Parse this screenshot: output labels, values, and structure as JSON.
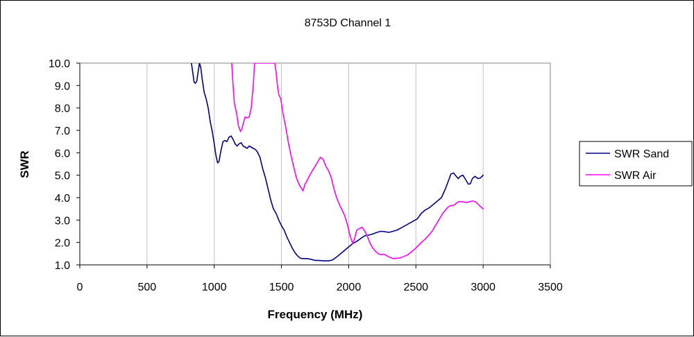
{
  "chart_data": {
    "type": "line",
    "title": "8753D Channel 1",
    "xlabel": "Frequency (MHz)",
    "ylabel": "SWR",
    "xlim": [
      0,
      3500
    ],
    "ylim": [
      1.0,
      10.0
    ],
    "x_ticks": [
      "0",
      "500",
      "1000",
      "1500",
      "2000",
      "2500",
      "3000",
      "3500"
    ],
    "y_ticks": [
      "1.0",
      "2.0",
      "3.0",
      "4.0",
      "5.0",
      "6.0",
      "7.0",
      "8.0",
      "9.0",
      "10.0"
    ],
    "x_tick_values": [
      0,
      500,
      1000,
      1500,
      2000,
      2500,
      3000,
      3500
    ],
    "y_tick_values": [
      1,
      2,
      3,
      4,
      5,
      6,
      7,
      8,
      9,
      10
    ],
    "grid": "vertical",
    "legend_position": "right",
    "series": [
      {
        "name": "SWR Sand",
        "color": "#000080",
        "points": [
          [
            830,
            10.0
          ],
          [
            840,
            9.6
          ],
          [
            850,
            9.15
          ],
          [
            860,
            9.1
          ],
          [
            870,
            9.2
          ],
          [
            880,
            9.6
          ],
          [
            890,
            10.0
          ],
          [
            900,
            9.8
          ],
          [
            910,
            9.3
          ],
          [
            925,
            8.7
          ],
          [
            940,
            8.4
          ],
          [
            955,
            8.0
          ],
          [
            970,
            7.4
          ],
          [
            985,
            6.95
          ],
          [
            1000,
            6.4
          ],
          [
            1012,
            5.9
          ],
          [
            1025,
            5.55
          ],
          [
            1035,
            5.6
          ],
          [
            1050,
            6.1
          ],
          [
            1065,
            6.5
          ],
          [
            1080,
            6.55
          ],
          [
            1095,
            6.5
          ],
          [
            1110,
            6.7
          ],
          [
            1125,
            6.75
          ],
          [
            1140,
            6.6
          ],
          [
            1155,
            6.4
          ],
          [
            1170,
            6.3
          ],
          [
            1185,
            6.4
          ],
          [
            1200,
            6.45
          ],
          [
            1215,
            6.3
          ],
          [
            1230,
            6.25
          ],
          [
            1245,
            6.2
          ],
          [
            1260,
            6.3
          ],
          [
            1275,
            6.25
          ],
          [
            1290,
            6.2
          ],
          [
            1305,
            6.15
          ],
          [
            1320,
            6.05
          ],
          [
            1340,
            5.8
          ],
          [
            1360,
            5.3
          ],
          [
            1380,
            4.9
          ],
          [
            1400,
            4.4
          ],
          [
            1420,
            3.9
          ],
          [
            1440,
            3.5
          ],
          [
            1460,
            3.3
          ],
          [
            1480,
            3.0
          ],
          [
            1500,
            2.75
          ],
          [
            1520,
            2.55
          ],
          [
            1540,
            2.25
          ],
          [
            1560,
            2.0
          ],
          [
            1580,
            1.75
          ],
          [
            1600,
            1.55
          ],
          [
            1620,
            1.4
          ],
          [
            1640,
            1.3
          ],
          [
            1660,
            1.28
          ],
          [
            1690,
            1.28
          ],
          [
            1720,
            1.25
          ],
          [
            1750,
            1.2
          ],
          [
            1780,
            1.2
          ],
          [
            1810,
            1.18
          ],
          [
            1850,
            1.18
          ],
          [
            1880,
            1.22
          ],
          [
            1910,
            1.35
          ],
          [
            1940,
            1.5
          ],
          [
            1970,
            1.65
          ],
          [
            2000,
            1.8
          ],
          [
            2030,
            1.95
          ],
          [
            2060,
            2.05
          ],
          [
            2090,
            2.18
          ],
          [
            2120,
            2.3
          ],
          [
            2150,
            2.33
          ],
          [
            2180,
            2.38
          ],
          [
            2210,
            2.45
          ],
          [
            2240,
            2.5
          ],
          [
            2270,
            2.48
          ],
          [
            2300,
            2.45
          ],
          [
            2330,
            2.5
          ],
          [
            2360,
            2.55
          ],
          [
            2390,
            2.65
          ],
          [
            2420,
            2.75
          ],
          [
            2450,
            2.85
          ],
          [
            2480,
            2.95
          ],
          [
            2510,
            3.05
          ],
          [
            2540,
            3.3
          ],
          [
            2570,
            3.45
          ],
          [
            2600,
            3.55
          ],
          [
            2630,
            3.7
          ],
          [
            2660,
            3.85
          ],
          [
            2690,
            4.0
          ],
          [
            2720,
            4.4
          ],
          [
            2745,
            4.8
          ],
          [
            2760,
            5.05
          ],
          [
            2780,
            5.1
          ],
          [
            2800,
            4.95
          ],
          [
            2815,
            4.85
          ],
          [
            2830,
            4.95
          ],
          [
            2850,
            5.0
          ],
          [
            2870,
            4.8
          ],
          [
            2890,
            4.6
          ],
          [
            2905,
            4.62
          ],
          [
            2920,
            4.85
          ],
          [
            2940,
            4.95
          ],
          [
            2960,
            4.85
          ],
          [
            2980,
            4.88
          ],
          [
            3000,
            5.0
          ]
        ]
      },
      {
        "name": "SWR Air",
        "color": "#FF00FF",
        "points": [
          [
            1130,
            10.0
          ],
          [
            1140,
            9.0
          ],
          [
            1150,
            8.2
          ],
          [
            1165,
            7.8
          ],
          [
            1180,
            7.2
          ],
          [
            1195,
            6.95
          ],
          [
            1205,
            7.05
          ],
          [
            1215,
            7.3
          ],
          [
            1230,
            7.6
          ],
          [
            1245,
            7.55
          ],
          [
            1260,
            7.6
          ],
          [
            1275,
            8.0
          ],
          [
            1290,
            9.0
          ],
          [
            1300,
            10.0
          ],
          [
            1450,
            10.0
          ],
          [
            1460,
            9.6
          ],
          [
            1470,
            9.0
          ],
          [
            1480,
            8.6
          ],
          [
            1495,
            8.4
          ],
          [
            1510,
            7.8
          ],
          [
            1530,
            7.2
          ],
          [
            1550,
            6.5
          ],
          [
            1570,
            5.9
          ],
          [
            1590,
            5.4
          ],
          [
            1610,
            4.9
          ],
          [
            1630,
            4.6
          ],
          [
            1650,
            4.4
          ],
          [
            1660,
            4.3
          ],
          [
            1675,
            4.6
          ],
          [
            1690,
            4.75
          ],
          [
            1710,
            5.0
          ],
          [
            1730,
            5.2
          ],
          [
            1750,
            5.4
          ],
          [
            1770,
            5.6
          ],
          [
            1790,
            5.8
          ],
          [
            1810,
            5.7
          ],
          [
            1830,
            5.4
          ],
          [
            1850,
            5.2
          ],
          [
            1870,
            4.9
          ],
          [
            1890,
            4.4
          ],
          [
            1910,
            4.0
          ],
          [
            1930,
            3.7
          ],
          [
            1950,
            3.45
          ],
          [
            1970,
            3.2
          ],
          [
            1990,
            2.8
          ],
          [
            2010,
            2.3
          ],
          [
            2030,
            1.95
          ],
          [
            2045,
            2.2
          ],
          [
            2060,
            2.55
          ],
          [
            2080,
            2.62
          ],
          [
            2100,
            2.68
          ],
          [
            2120,
            2.5
          ],
          [
            2140,
            2.25
          ],
          [
            2160,
            1.95
          ],
          [
            2180,
            1.75
          ],
          [
            2200,
            1.6
          ],
          [
            2220,
            1.5
          ],
          [
            2240,
            1.45
          ],
          [
            2260,
            1.48
          ],
          [
            2280,
            1.42
          ],
          [
            2300,
            1.35
          ],
          [
            2320,
            1.3
          ],
          [
            2340,
            1.28
          ],
          [
            2360,
            1.3
          ],
          [
            2380,
            1.3
          ],
          [
            2400,
            1.35
          ],
          [
            2420,
            1.4
          ],
          [
            2440,
            1.45
          ],
          [
            2460,
            1.55
          ],
          [
            2480,
            1.65
          ],
          [
            2500,
            1.75
          ],
          [
            2520,
            1.88
          ],
          [
            2540,
            2.0
          ],
          [
            2560,
            2.1
          ],
          [
            2580,
            2.22
          ],
          [
            2600,
            2.35
          ],
          [
            2620,
            2.5
          ],
          [
            2640,
            2.7
          ],
          [
            2660,
            2.9
          ],
          [
            2680,
            3.1
          ],
          [
            2700,
            3.3
          ],
          [
            2720,
            3.45
          ],
          [
            2740,
            3.58
          ],
          [
            2760,
            3.65
          ],
          [
            2780,
            3.65
          ],
          [
            2800,
            3.75
          ],
          [
            2820,
            3.82
          ],
          [
            2840,
            3.82
          ],
          [
            2860,
            3.8
          ],
          [
            2880,
            3.78
          ],
          [
            2900,
            3.82
          ],
          [
            2920,
            3.85
          ],
          [
            2940,
            3.82
          ],
          [
            2960,
            3.72
          ],
          [
            2980,
            3.6
          ],
          [
            3000,
            3.5
          ]
        ]
      }
    ]
  }
}
